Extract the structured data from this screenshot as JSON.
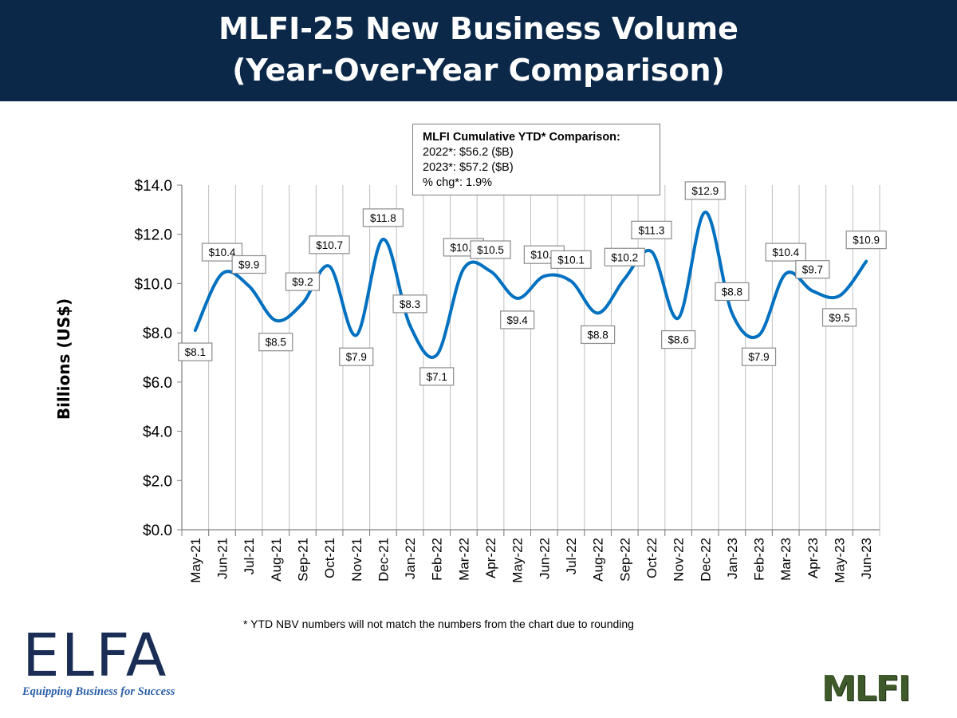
{
  "header": {
    "title_line1": "MLFI-25 New Business Volume",
    "title_line2": "(Year-Over-Year Comparison)"
  },
  "ytd_box": {
    "title": "MLFI Cumulative YTD* Comparison:",
    "line1": "2022*: $56.2 ($B)",
    "line2": "2023*: $57.2 ($B)",
    "line3": "% chg*:  1.9%"
  },
  "footnote": "*  YTD NBV numbers will not match the numbers from the chart due to rounding",
  "logos": {
    "elfa": "ELFA",
    "elfa_tagline": "Equipping Business for Success",
    "mlfi": "MLFI"
  },
  "chart_data": {
    "type": "line",
    "ylabel": "Billions (US$)",
    "ylim": [
      0,
      14
    ],
    "yticks": [
      "$0.0",
      "$2.0",
      "$4.0",
      "$6.0",
      "$8.0",
      "$10.0",
      "$12.0",
      "$14.0"
    ],
    "grid": "vertical",
    "color": "#0070c0",
    "categories": [
      "May-21",
      "Jun-21",
      "Jul-21",
      "Aug-21",
      "Sep-21",
      "Oct-21",
      "Nov-21",
      "Dec-21",
      "Jan-22",
      "Feb-22",
      "Mar-22",
      "Apr-22",
      "May-22",
      "Jun-22",
      "Jul-22",
      "Aug-22",
      "Sep-22",
      "Oct-22",
      "Nov-22",
      "Dec-22",
      "Jan-23",
      "Feb-23",
      "Mar-23",
      "Apr-23",
      "May-23",
      "Jun-23"
    ],
    "values": [
      8.1,
      10.4,
      9.9,
      8.5,
      9.2,
      10.7,
      7.9,
      11.8,
      8.3,
      7.1,
      10.6,
      10.5,
      9.4,
      10.3,
      10.1,
      8.8,
      10.2,
      11.3,
      8.6,
      12.9,
      8.8,
      7.9,
      10.4,
      9.7,
      9.5,
      10.9
    ],
    "data_labels": [
      "$8.1",
      "$10.4",
      "$9.9",
      "$8.5",
      "$9.2",
      "$10.7",
      "$7.9",
      "$11.8",
      "$8.3",
      "$7.1",
      "$10.6",
      "$10.5",
      "$9.4",
      "$10.3",
      "$10.1",
      "$8.8",
      "$10.2",
      "$11.3",
      "$8.6",
      "$12.9",
      "$8.8",
      "$7.9",
      "$10.4",
      "$9.7",
      "$9.5",
      "$10.9"
    ]
  }
}
